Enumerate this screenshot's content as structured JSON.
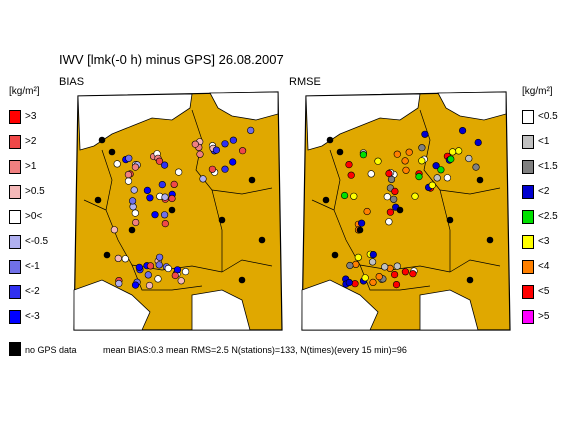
{
  "title": "IWV [lmk(-0 h) minus GPS] 26.08.2007",
  "panels": {
    "left_label": "BIAS",
    "right_label": "RMSE"
  },
  "legend_bias": {
    "unit": "[kg/m²]",
    "items": [
      {
        "label": ">3",
        "color": "#ff0000"
      },
      {
        "label": ">2",
        "color": "#f04848"
      },
      {
        "label": ">1",
        "color": "#f08080"
      },
      {
        "label": ">0.5",
        "color": "#f4b8b8"
      },
      {
        "label": ">0<",
        "color": "#ffffff"
      },
      {
        "label": "<-0.5",
        "color": "#b0b0f0"
      },
      {
        "label": "<-1",
        "color": "#7070e8"
      },
      {
        "label": "<-2",
        "color": "#3030f0"
      },
      {
        "label": "<-3",
        "color": "#0000ff"
      }
    ]
  },
  "legend_rmse": {
    "unit": "[kg/m²]",
    "items": [
      {
        "label": "<0.5",
        "color": "#ffffff"
      },
      {
        "label": "<1",
        "color": "#c0c0c0"
      },
      {
        "label": "<1.5",
        "color": "#808080"
      },
      {
        "label": "<2",
        "color": "#0000d0"
      },
      {
        "label": "<2.5",
        "color": "#00e000"
      },
      {
        "label": "<3",
        "color": "#ffff00"
      },
      {
        "label": "<4",
        "color": "#ff8000"
      },
      {
        "label": "<5",
        "color": "#ff0000"
      },
      {
        "label": ">5",
        "color": "#ff00ff"
      }
    ]
  },
  "footer": {
    "nogps_label": "no GPS data",
    "stats": "mean BIAS:0.3  mean RMS=2.5  N(stations)=133, N(times)(every 15 min)=96"
  },
  "colors": {
    "land": "#e0a800",
    "sea": "#ffffff",
    "border": "#000000"
  }
}
